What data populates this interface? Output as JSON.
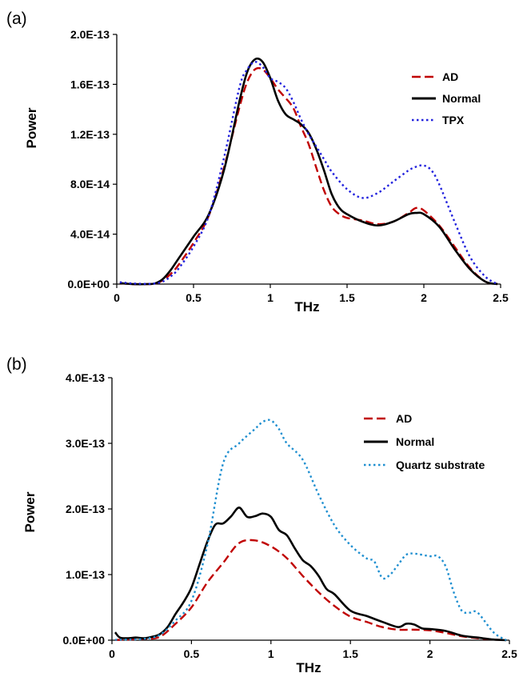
{
  "colors": {
    "ad": "#c00000",
    "normal": "#000000",
    "tpx": "#2222dd",
    "quartz": "#1f8fd0",
    "axis": "#000000"
  },
  "chart_data": [
    {
      "type": "line",
      "panel_label": "(a)",
      "xlabel": "THz",
      "ylabel": "Power",
      "xlim": [
        0,
        2.5
      ],
      "ylim": [
        0,
        2e-13
      ],
      "xticks": [
        0,
        0.5,
        1,
        1.5,
        2,
        2.5
      ],
      "xtick_labels": [
        "0",
        "0.5",
        "1",
        "1.5",
        "2",
        "2.5"
      ],
      "yticks": [
        0,
        4e-14,
        8e-14,
        1.2e-13,
        1.6e-13,
        2e-13
      ],
      "ytick_labels": [
        "0.0E+00",
        "4.0E-14",
        "8.0E-14",
        "1.2E-13",
        "1.6E-13",
        "2.0E-13"
      ],
      "grid": false,
      "legend_position": "top-right",
      "series": [
        {
          "name": "AD",
          "style": "dashed",
          "color_key": "ad",
          "x": [
            0.02,
            0.1,
            0.2,
            0.25,
            0.3,
            0.35,
            0.4,
            0.5,
            0.6,
            0.7,
            0.8,
            0.85,
            0.9,
            0.95,
            1.0,
            1.05,
            1.1,
            1.15,
            1.2,
            1.25,
            1.3,
            1.35,
            1.4,
            1.45,
            1.5,
            1.6,
            1.7,
            1.8,
            1.9,
            1.95,
            2.0,
            2.1,
            2.2,
            2.3,
            2.4,
            2.48
          ],
          "y": [
            8e-16,
            0,
            0,
            4e-16,
            3e-15,
            8e-15,
            1.5e-14,
            3.3e-14,
            5.5e-14,
            9.4e-14,
            1.42e-13,
            1.62e-13,
            1.72e-13,
            1.72e-13,
            1.65e-13,
            1.56e-13,
            1.49e-13,
            1.41e-13,
            1.26e-13,
            1.12e-13,
            9.3e-14,
            7.5e-14,
            6.2e-14,
            5.6e-14,
            5.3e-14,
            5.1e-14,
            4.8e-14,
            5e-14,
            5.7e-14,
            6.1e-14,
            5.9e-14,
            4.7e-14,
            3e-14,
            1.3e-14,
            2e-15,
            0
          ]
        },
        {
          "name": "Normal",
          "style": "solid",
          "color_key": "normal",
          "x": [
            0.02,
            0.1,
            0.2,
            0.25,
            0.3,
            0.35,
            0.4,
            0.5,
            0.6,
            0.7,
            0.8,
            0.85,
            0.9,
            0.95,
            1.0,
            1.05,
            1.1,
            1.15,
            1.2,
            1.25,
            1.3,
            1.35,
            1.4,
            1.45,
            1.5,
            1.6,
            1.7,
            1.8,
            1.9,
            1.95,
            2.0,
            2.1,
            2.2,
            2.3,
            2.4,
            2.48
          ],
          "y": [
            8e-16,
            0,
            0,
            6e-16,
            4e-15,
            1.1e-14,
            2e-14,
            3.8e-14,
            5.6e-14,
            9.2e-14,
            1.47e-13,
            1.7e-13,
            1.8e-13,
            1.78e-13,
            1.65e-13,
            1.47e-13,
            1.36e-13,
            1.32e-13,
            1.28e-13,
            1.21e-13,
            1.08e-13,
            9.1e-14,
            7.2e-14,
            6.1e-14,
            5.6e-14,
            5e-14,
            4.7e-14,
            5e-14,
            5.6e-14,
            5.7e-14,
            5.6e-14,
            4.6e-14,
            2.8e-14,
            1.2e-14,
            2e-15,
            0
          ]
        },
        {
          "name": "TPX",
          "style": "dotted",
          "color_key": "tpx",
          "x": [
            0.02,
            0.1,
            0.2,
            0.25,
            0.3,
            0.35,
            0.4,
            0.5,
            0.6,
            0.7,
            0.8,
            0.85,
            0.9,
            0.95,
            1.0,
            1.05,
            1.1,
            1.15,
            1.2,
            1.25,
            1.3,
            1.35,
            1.4,
            1.5,
            1.6,
            1.7,
            1.8,
            1.9,
            1.95,
            2.0,
            2.05,
            2.1,
            2.2,
            2.3,
            2.4,
            2.48
          ],
          "y": [
            1.5e-15,
            5e-16,
            2e-16,
            5e-16,
            2e-15,
            6e-15,
            1.2e-14,
            3e-14,
            5.5e-14,
            1.02e-13,
            1.58e-13,
            1.72e-13,
            1.78e-13,
            1.74e-13,
            1.65e-13,
            1.62e-13,
            1.57e-13,
            1.46e-13,
            1.32e-13,
            1.2e-13,
            1.1e-13,
            1e-13,
            9e-14,
            7.6e-14,
            6.9e-14,
            7.3e-14,
            8.2e-14,
            9.1e-14,
            9.4e-14,
            9.5e-14,
            9.1e-14,
            8e-14,
            5e-14,
            2.2e-14,
            6e-15,
            0
          ]
        }
      ]
    },
    {
      "type": "line",
      "panel_label": "(b)",
      "xlabel": "THz",
      "ylabel": "Power",
      "xlim": [
        0,
        2.5
      ],
      "ylim": [
        0,
        4e-13
      ],
      "xticks": [
        0,
        0.5,
        1,
        1.5,
        2,
        2.5
      ],
      "xtick_labels": [
        "0",
        "0.5",
        "1",
        "1.5",
        "2",
        "2.5"
      ],
      "yticks": [
        0,
        1e-13,
        2e-13,
        3e-13,
        4e-13
      ],
      "ytick_labels": [
        "0.0E+00",
        "1.0E-13",
        "2.0E-13",
        "3.0E-13",
        "4.0E-13"
      ],
      "grid": false,
      "legend_position": "top-right",
      "series": [
        {
          "name": "AD",
          "style": "dashed",
          "color_key": "ad",
          "x": [
            0.02,
            0.1,
            0.2,
            0.3,
            0.4,
            0.5,
            0.6,
            0.7,
            0.8,
            0.9,
            1.0,
            1.1,
            1.2,
            1.3,
            1.4,
            1.5,
            1.6,
            1.7,
            1.8,
            1.9,
            2.0,
            2.1,
            2.2,
            2.3,
            2.4,
            2.48
          ],
          "y": [
            3e-16,
            1e-15,
            2e-15,
            5e-15,
            2.5e-14,
            5e-14,
            8.8e-14,
            1.18e-13,
            1.48e-13,
            1.52e-13,
            1.43e-13,
            1.25e-13,
            9.8e-14,
            7.3e-14,
            5.2e-14,
            3.6e-14,
            2.8e-14,
            2e-14,
            1.6e-14,
            1.6e-14,
            1.5e-14,
            1.1e-14,
            6e-15,
            3e-15,
            1e-15,
            0
          ]
        },
        {
          "name": "Normal",
          "style": "solid",
          "color_key": "normal",
          "x": [
            0.02,
            0.05,
            0.1,
            0.15,
            0.2,
            0.25,
            0.3,
            0.35,
            0.4,
            0.45,
            0.5,
            0.55,
            0.6,
            0.65,
            0.7,
            0.75,
            0.8,
            0.85,
            0.9,
            0.95,
            1.0,
            1.05,
            1.1,
            1.15,
            1.2,
            1.25,
            1.3,
            1.35,
            1.4,
            1.5,
            1.6,
            1.7,
            1.8,
            1.85,
            1.9,
            1.95,
            2.0,
            2.1,
            2.2,
            2.3,
            2.4,
            2.48
          ],
          "y": [
            1.2e-14,
            4e-15,
            3e-15,
            4e-15,
            3e-15,
            5e-15,
            9e-15,
            2e-14,
            4e-14,
            5.8e-14,
            8e-14,
            1.15e-13,
            1.5e-13,
            1.76e-13,
            1.78e-13,
            1.89e-13,
            2.02e-13,
            1.88e-13,
            1.89e-13,
            1.93e-13,
            1.88e-13,
            1.68e-13,
            1.6e-13,
            1.4e-13,
            1.22e-13,
            1.13e-13,
            9.8e-14,
            7.8e-14,
            7e-14,
            4.5e-14,
            3.7e-14,
            2.8e-14,
            2e-14,
            2.5e-14,
            2.4e-14,
            1.8e-14,
            1.7e-14,
            1.4e-14,
            7e-15,
            4e-15,
            1e-15,
            0
          ]
        },
        {
          "name": "Quartz substrate",
          "style": "dotted",
          "color_key": "quartz",
          "x": [
            0.02,
            0.1,
            0.2,
            0.3,
            0.4,
            0.5,
            0.6,
            0.7,
            0.8,
            0.9,
            0.95,
            1.0,
            1.05,
            1.1,
            1.2,
            1.3,
            1.4,
            1.5,
            1.6,
            1.65,
            1.7,
            1.75,
            1.8,
            1.85,
            1.9,
            2.0,
            2.05,
            2.1,
            2.15,
            2.2,
            2.25,
            2.3,
            2.4,
            2.48
          ],
          "y": [
            5e-16,
            1e-15,
            2e-15,
            8e-15,
            3e-14,
            6e-14,
            1.45e-13,
            2.7e-13,
            3e-13,
            3.22e-13,
            3.33e-13,
            3.35e-13,
            3.22e-13,
            3e-13,
            2.75e-13,
            2.22e-13,
            1.75e-13,
            1.45e-13,
            1.25e-13,
            1.2e-13,
            9.5e-14,
            1e-13,
            1.15e-13,
            1.3e-13,
            1.32e-13,
            1.28e-13,
            1.28e-13,
            1.12e-13,
            7.3e-14,
            4.5e-14,
            4.2e-14,
            4.2e-14,
            1.2e-14,
            0
          ]
        }
      ]
    }
  ]
}
